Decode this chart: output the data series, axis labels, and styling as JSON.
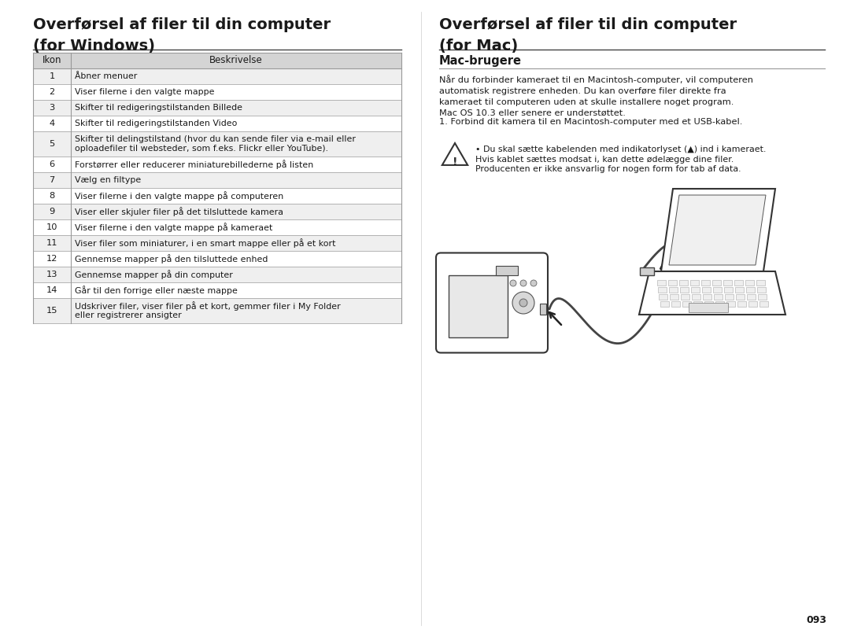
{
  "bg_color": "#ffffff",
  "left_title_line1": "Overførsel af filer til din computer",
  "left_title_line2": "(for Windows)",
  "right_title_line1": "Overførsel af filer til din computer",
  "right_title_line2": "(for Mac)",
  "right_subtitle": "Mac-brugere",
  "table_header": [
    "Ikon",
    "Beskrivelse"
  ],
  "table_rows": [
    [
      "1",
      "Åbner menuer"
    ],
    [
      "2",
      "Viser filerne i den valgte mappe"
    ],
    [
      "3",
      "Skifter til redigeringstilstanden Billede"
    ],
    [
      "4",
      "Skifter til redigeringstilstanden Video"
    ],
    [
      "5",
      "Skifter til delingstilstand (hvor du kan sende filer via e-mail eller\noploadefiler til websteder, som f.eks. Flickr eller YouTube)."
    ],
    [
      "6",
      "Forstørrer eller reducerer miniaturebillederne på listen"
    ],
    [
      "7",
      "Vælg en filtype"
    ],
    [
      "8",
      "Viser filerne i den valgte mappe på computeren"
    ],
    [
      "9",
      "Viser eller skjuler filer på det tilsluttede kamera"
    ],
    [
      "10",
      "Viser filerne i den valgte mappe på kameraet"
    ],
    [
      "11",
      "Viser filer som miniaturer, i en smart mappe eller på et kort"
    ],
    [
      "12",
      "Gennemse mapper på den tilsluttede enhed"
    ],
    [
      "13",
      "Gennemse mapper på din computer"
    ],
    [
      "14",
      "Går til den forrige eller næste mappe"
    ],
    [
      "15",
      "Udskriver filer, viser filer på et kort, gemmer filer i My Folder\neller registrerer ansigter"
    ]
  ],
  "right_para1": "Når du forbinder kameraet til en Macintosh-computer, vil computeren\nautomatisk registrere enheden. Du kan overføre filer direkte fra\nkameraet til computeren uden at skulle installere noget program.\nMac OS 10.3 eller senere er understøttet.",
  "right_step1": "1. Forbind dit kamera til en Macintosh-computer med et USB-kabel.",
  "warning_bullet": "• Du skal sætte kabelenden med indikatorlyset (▲) ind i kameraet.",
  "warning_line2": "Hvis kablet sættes modsat i, kan dette ødelægge dine filer.",
  "warning_line3": "Producenten er ikke ansvarlig for nogen form for tab af data.",
  "page_number": "093",
  "header_bg": "#d4d4d4",
  "row_odd_bg": "#efefef",
  "row_even_bg": "#ffffff",
  "text_color": "#1a1a1a",
  "table_border_color": "#999999",
  "title_fontsize": 14,
  "body_fontsize": 8.2,
  "header_fontsize": 8.5,
  "subtitle_fontsize": 10.5
}
